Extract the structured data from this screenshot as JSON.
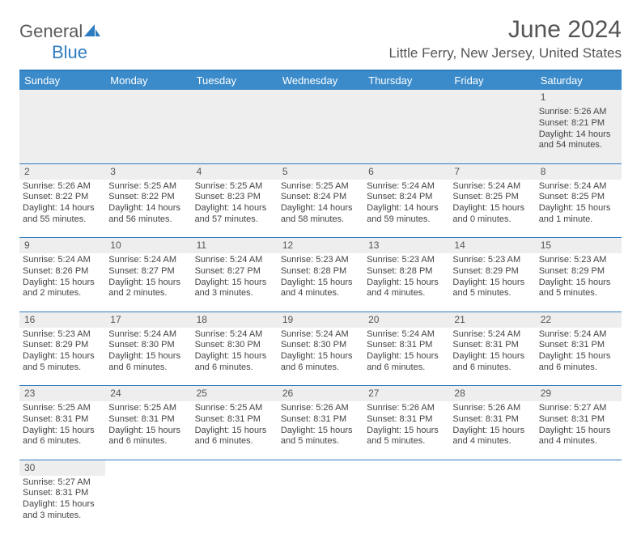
{
  "brand": {
    "name_part1": "General",
    "name_part2": "Blue"
  },
  "title": "June 2024",
  "location": "Little Ferry, New Jersey, United States",
  "colors": {
    "header_bg": "#3b8bca",
    "border": "#2e7cc0",
    "daynum_bg": "#eeeeee",
    "text": "#444444"
  },
  "day_headers": [
    "Sunday",
    "Monday",
    "Tuesday",
    "Wednesday",
    "Thursday",
    "Friday",
    "Saturday"
  ],
  "weeks": [
    {
      "cells": [
        {
          "empty": true
        },
        {
          "empty": true
        },
        {
          "empty": true
        },
        {
          "empty": true
        },
        {
          "empty": true
        },
        {
          "empty": true
        },
        {
          "num": "1",
          "sunrise": "Sunrise: 5:26 AM",
          "sunset": "Sunset: 8:21 PM",
          "daylight": "Daylight: 14 hours and 54 minutes."
        }
      ]
    },
    {
      "cells": [
        {
          "num": "2",
          "sunrise": "Sunrise: 5:26 AM",
          "sunset": "Sunset: 8:22 PM",
          "daylight": "Daylight: 14 hours and 55 minutes."
        },
        {
          "num": "3",
          "sunrise": "Sunrise: 5:25 AM",
          "sunset": "Sunset: 8:22 PM",
          "daylight": "Daylight: 14 hours and 56 minutes."
        },
        {
          "num": "4",
          "sunrise": "Sunrise: 5:25 AM",
          "sunset": "Sunset: 8:23 PM",
          "daylight": "Daylight: 14 hours and 57 minutes."
        },
        {
          "num": "5",
          "sunrise": "Sunrise: 5:25 AM",
          "sunset": "Sunset: 8:24 PM",
          "daylight": "Daylight: 14 hours and 58 minutes."
        },
        {
          "num": "6",
          "sunrise": "Sunrise: 5:24 AM",
          "sunset": "Sunset: 8:24 PM",
          "daylight": "Daylight: 14 hours and 59 minutes."
        },
        {
          "num": "7",
          "sunrise": "Sunrise: 5:24 AM",
          "sunset": "Sunset: 8:25 PM",
          "daylight": "Daylight: 15 hours and 0 minutes."
        },
        {
          "num": "8",
          "sunrise": "Sunrise: 5:24 AM",
          "sunset": "Sunset: 8:25 PM",
          "daylight": "Daylight: 15 hours and 1 minute."
        }
      ]
    },
    {
      "cells": [
        {
          "num": "9",
          "sunrise": "Sunrise: 5:24 AM",
          "sunset": "Sunset: 8:26 PM",
          "daylight": "Daylight: 15 hours and 2 minutes."
        },
        {
          "num": "10",
          "sunrise": "Sunrise: 5:24 AM",
          "sunset": "Sunset: 8:27 PM",
          "daylight": "Daylight: 15 hours and 2 minutes."
        },
        {
          "num": "11",
          "sunrise": "Sunrise: 5:24 AM",
          "sunset": "Sunset: 8:27 PM",
          "daylight": "Daylight: 15 hours and 3 minutes."
        },
        {
          "num": "12",
          "sunrise": "Sunrise: 5:23 AM",
          "sunset": "Sunset: 8:28 PM",
          "daylight": "Daylight: 15 hours and 4 minutes."
        },
        {
          "num": "13",
          "sunrise": "Sunrise: 5:23 AM",
          "sunset": "Sunset: 8:28 PM",
          "daylight": "Daylight: 15 hours and 4 minutes."
        },
        {
          "num": "14",
          "sunrise": "Sunrise: 5:23 AM",
          "sunset": "Sunset: 8:29 PM",
          "daylight": "Daylight: 15 hours and 5 minutes."
        },
        {
          "num": "15",
          "sunrise": "Sunrise: 5:23 AM",
          "sunset": "Sunset: 8:29 PM",
          "daylight": "Daylight: 15 hours and 5 minutes."
        }
      ]
    },
    {
      "cells": [
        {
          "num": "16",
          "sunrise": "Sunrise: 5:23 AM",
          "sunset": "Sunset: 8:29 PM",
          "daylight": "Daylight: 15 hours and 5 minutes."
        },
        {
          "num": "17",
          "sunrise": "Sunrise: 5:24 AM",
          "sunset": "Sunset: 8:30 PM",
          "daylight": "Daylight: 15 hours and 6 minutes."
        },
        {
          "num": "18",
          "sunrise": "Sunrise: 5:24 AM",
          "sunset": "Sunset: 8:30 PM",
          "daylight": "Daylight: 15 hours and 6 minutes."
        },
        {
          "num": "19",
          "sunrise": "Sunrise: 5:24 AM",
          "sunset": "Sunset: 8:30 PM",
          "daylight": "Daylight: 15 hours and 6 minutes."
        },
        {
          "num": "20",
          "sunrise": "Sunrise: 5:24 AM",
          "sunset": "Sunset: 8:31 PM",
          "daylight": "Daylight: 15 hours and 6 minutes."
        },
        {
          "num": "21",
          "sunrise": "Sunrise: 5:24 AM",
          "sunset": "Sunset: 8:31 PM",
          "daylight": "Daylight: 15 hours and 6 minutes."
        },
        {
          "num": "22",
          "sunrise": "Sunrise: 5:24 AM",
          "sunset": "Sunset: 8:31 PM",
          "daylight": "Daylight: 15 hours and 6 minutes."
        }
      ]
    },
    {
      "cells": [
        {
          "num": "23",
          "sunrise": "Sunrise: 5:25 AM",
          "sunset": "Sunset: 8:31 PM",
          "daylight": "Daylight: 15 hours and 6 minutes."
        },
        {
          "num": "24",
          "sunrise": "Sunrise: 5:25 AM",
          "sunset": "Sunset: 8:31 PM",
          "daylight": "Daylight: 15 hours and 6 minutes."
        },
        {
          "num": "25",
          "sunrise": "Sunrise: 5:25 AM",
          "sunset": "Sunset: 8:31 PM",
          "daylight": "Daylight: 15 hours and 6 minutes."
        },
        {
          "num": "26",
          "sunrise": "Sunrise: 5:26 AM",
          "sunset": "Sunset: 8:31 PM",
          "daylight": "Daylight: 15 hours and 5 minutes."
        },
        {
          "num": "27",
          "sunrise": "Sunrise: 5:26 AM",
          "sunset": "Sunset: 8:31 PM",
          "daylight": "Daylight: 15 hours and 5 minutes."
        },
        {
          "num": "28",
          "sunrise": "Sunrise: 5:26 AM",
          "sunset": "Sunset: 8:31 PM",
          "daylight": "Daylight: 15 hours and 4 minutes."
        },
        {
          "num": "29",
          "sunrise": "Sunrise: 5:27 AM",
          "sunset": "Sunset: 8:31 PM",
          "daylight": "Daylight: 15 hours and 4 minutes."
        }
      ]
    },
    {
      "cells": [
        {
          "num": "30",
          "sunrise": "Sunrise: 5:27 AM",
          "sunset": "Sunset: 8:31 PM",
          "daylight": "Daylight: 15 hours and 3 minutes."
        },
        {
          "empty": true
        },
        {
          "empty": true
        },
        {
          "empty": true
        },
        {
          "empty": true
        },
        {
          "empty": true
        },
        {
          "empty": true
        }
      ]
    }
  ]
}
